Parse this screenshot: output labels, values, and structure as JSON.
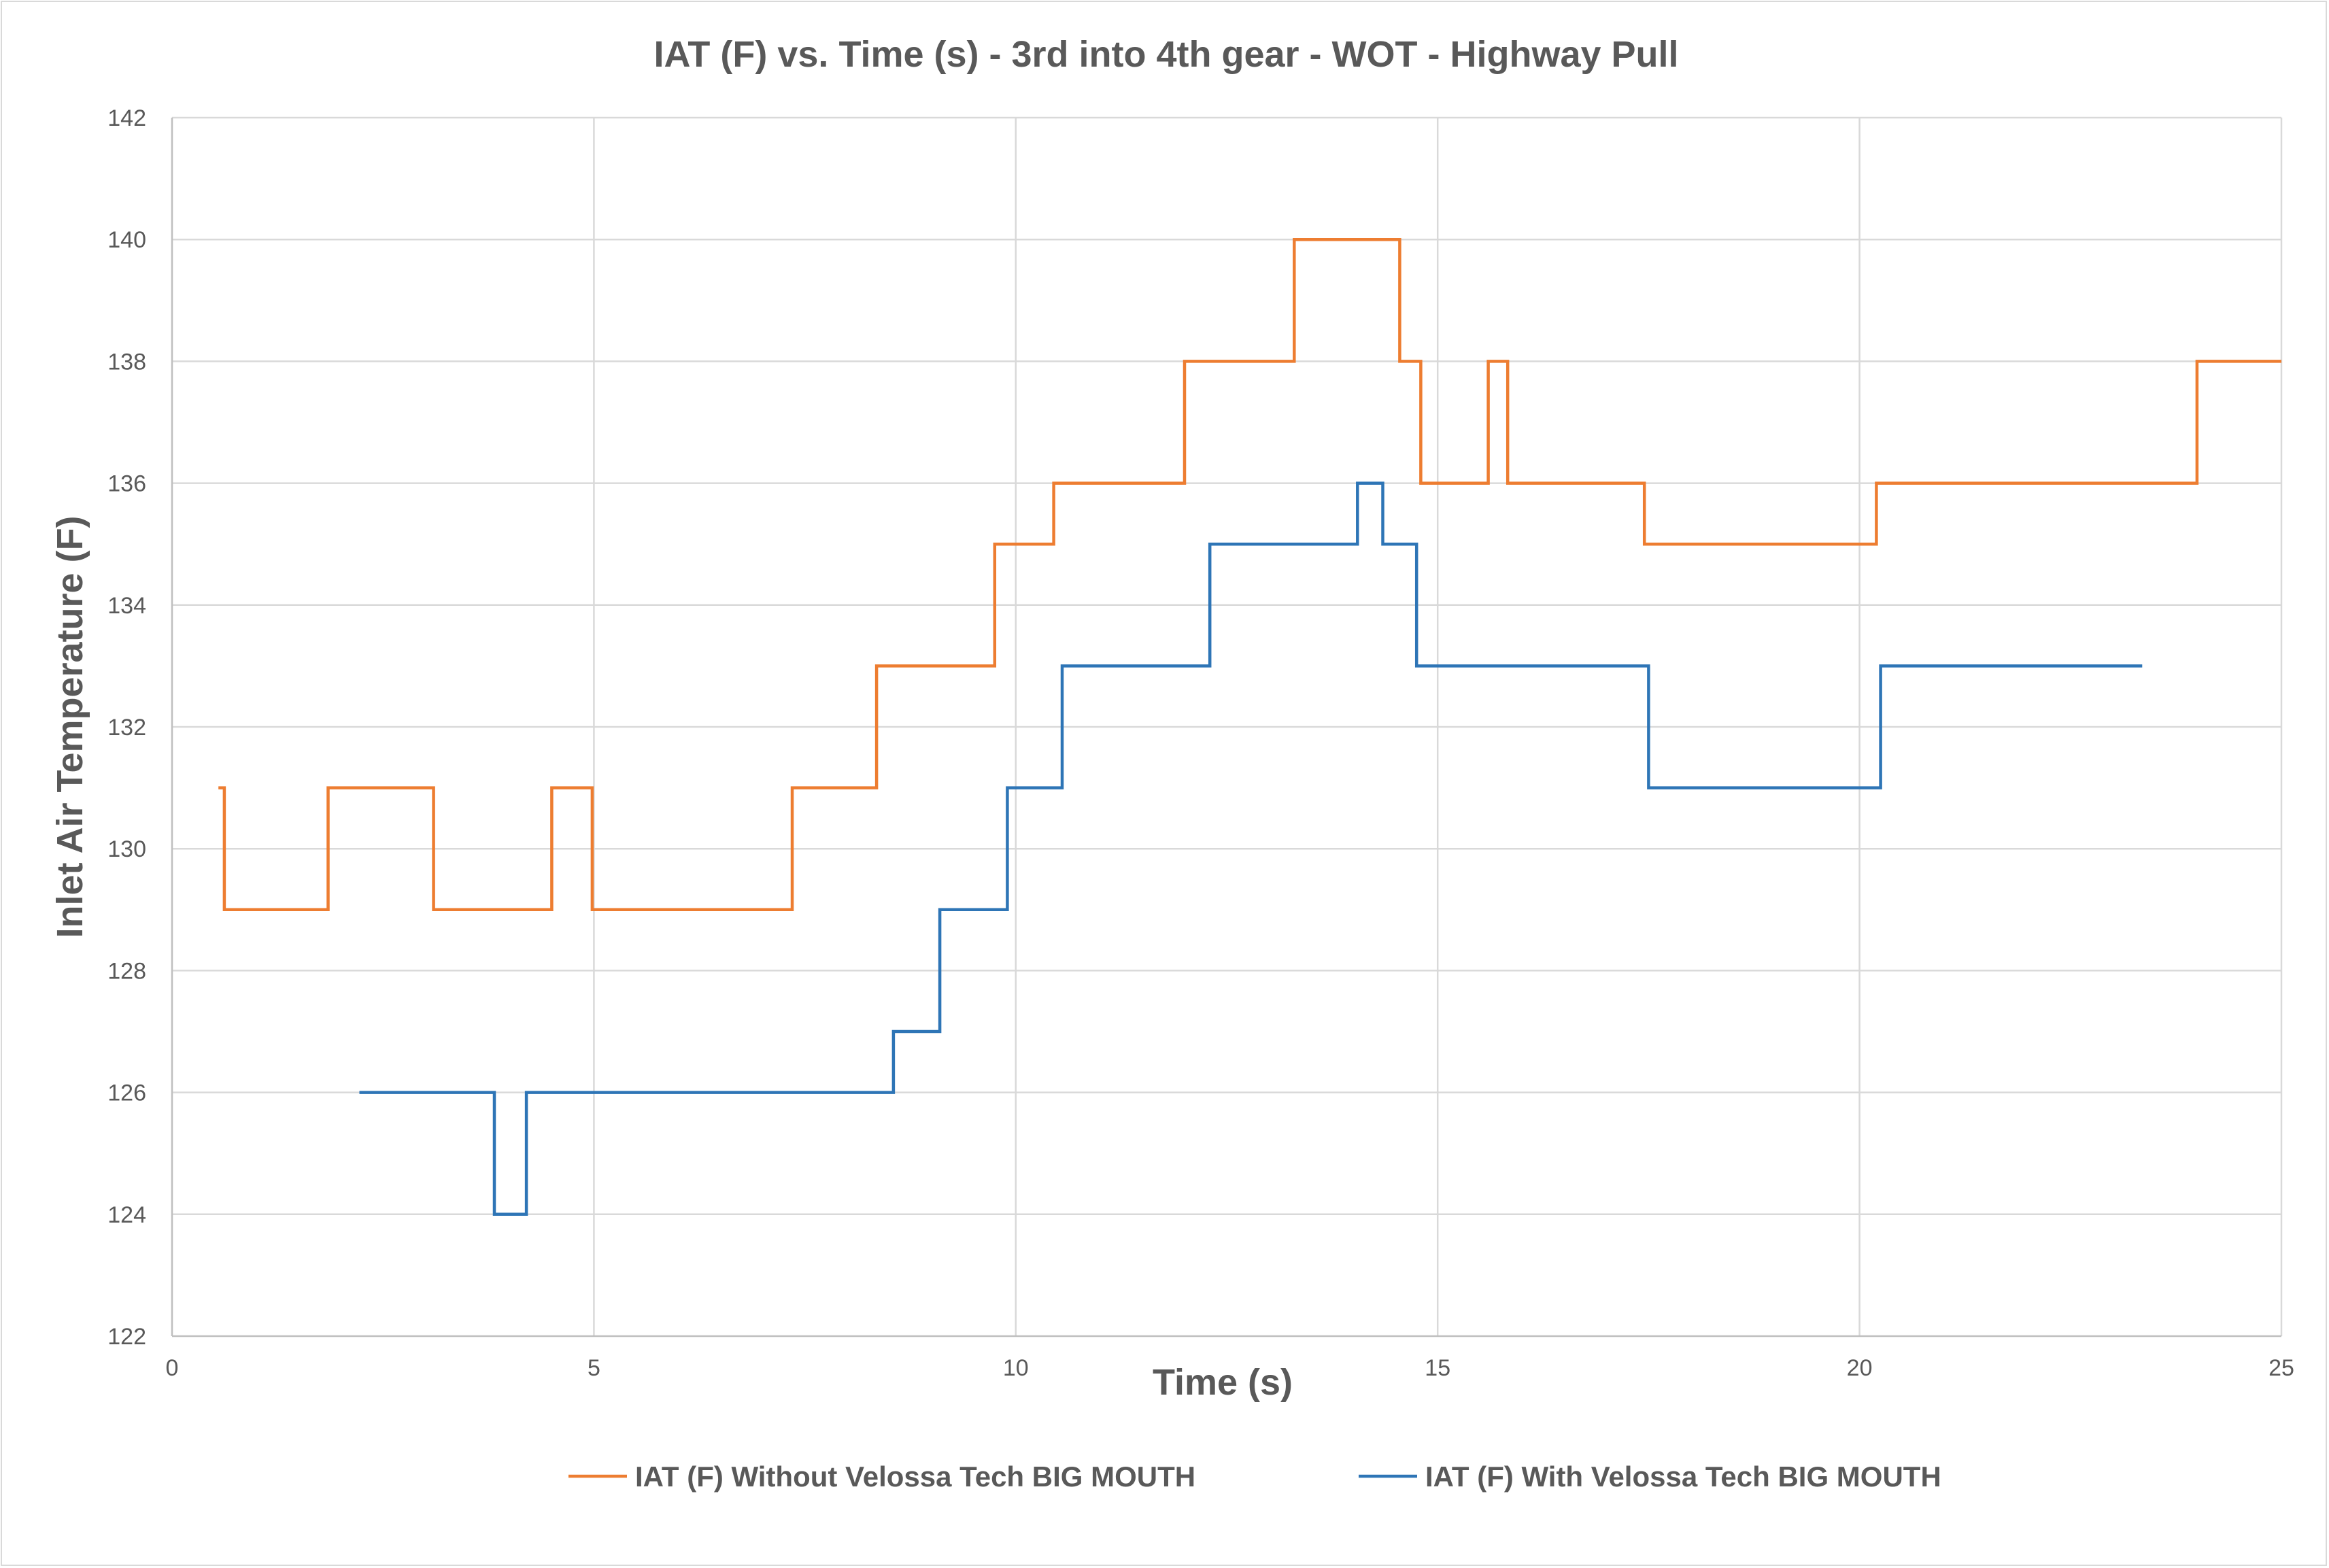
{
  "chart_data": {
    "type": "line",
    "title": "IAT (F) vs. Time (s) - 3rd into 4th gear - WOT - Highway Pull",
    "xlabel": "Time (s)",
    "ylabel": "Inlet Air Temperature (F)",
    "xlim": [
      0,
      25
    ],
    "ylim": [
      122,
      142
    ],
    "xticks": [
      0,
      5,
      10,
      15,
      20,
      25
    ],
    "yticks": [
      122,
      124,
      126,
      128,
      130,
      132,
      134,
      136,
      138,
      140,
      142
    ],
    "grid": true,
    "legend_position": "bottom",
    "step": true,
    "series": [
      {
        "name": "IAT (F) Without Velossa Tech BIG MOUTH",
        "color": "#ED7D31",
        "points": [
          [
            0.55,
            131
          ],
          [
            0.62,
            129
          ],
          [
            1.85,
            131
          ],
          [
            3.1,
            129
          ],
          [
            4.5,
            131
          ],
          [
            4.98,
            129
          ],
          [
            7.35,
            131
          ],
          [
            8.35,
            133
          ],
          [
            9.75,
            135
          ],
          [
            10.45,
            136
          ],
          [
            12.0,
            138
          ],
          [
            13.3,
            140
          ],
          [
            14.55,
            138
          ],
          [
            14.8,
            136
          ],
          [
            15.6,
            138
          ],
          [
            15.83,
            136
          ],
          [
            17.45,
            135
          ],
          [
            20.2,
            136
          ],
          [
            24.0,
            138
          ],
          [
            25.0,
            138
          ]
        ]
      },
      {
        "name": "IAT (F) With Velossa Tech BIG MOUTH",
        "color": "#2E75B6",
        "points": [
          [
            2.22,
            126
          ],
          [
            3.82,
            124
          ],
          [
            4.2,
            126
          ],
          [
            8.55,
            127
          ],
          [
            9.1,
            129
          ],
          [
            9.9,
            131
          ],
          [
            10.55,
            133
          ],
          [
            12.3,
            135
          ],
          [
            14.05,
            136
          ],
          [
            14.35,
            135
          ],
          [
            14.75,
            133
          ],
          [
            17.5,
            131
          ],
          [
            20.25,
            133
          ],
          [
            23.35,
            133
          ]
        ]
      }
    ]
  }
}
